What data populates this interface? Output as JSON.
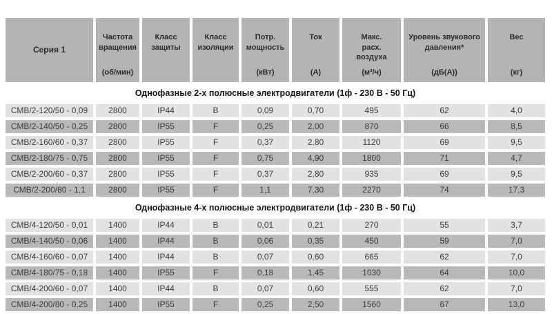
{
  "colors": {
    "header_bg": "#b4b4b4",
    "row_light_bg": "#e2e2e2",
    "row_dark_bg": "#b9b9b9",
    "text": "#3a3a3a"
  },
  "table": {
    "columns": [
      {
        "title": "Серия 1",
        "unit": ""
      },
      {
        "title": "Частота\nвращения",
        "unit": "(об/мин)"
      },
      {
        "title": "Класс\nзащиты",
        "unit": ""
      },
      {
        "title": "Класс\nизоляции",
        "unit": ""
      },
      {
        "title": "Потр.\nмощность",
        "unit": "(кВт)"
      },
      {
        "title": "Ток",
        "unit": "(А)"
      },
      {
        "title": "Макс.\nрасх.\nвоздуха",
        "unit": "(м³/ч)"
      },
      {
        "title": "Уровень звукового\nдавления*",
        "unit": "(дБ(А))"
      },
      {
        "title": "Вес",
        "unit": "(кг)"
      }
    ],
    "sections": [
      {
        "title": "Однофазные 2-х полюсные электродвигатели (1ф - 230 В - 50 Гц)",
        "rows": [
          [
            "СМВ/2-120/50 - 0,09",
            "2800",
            "IP44",
            "B",
            "0,09",
            "0,70",
            "495",
            "62",
            "4,0"
          ],
          [
            "СМВ/2-140/50 - 0,25",
            "2800",
            "IP55",
            "F",
            "0,25",
            "2,00",
            "870",
            "66",
            "8,5"
          ],
          [
            "СМВ/2-160/60 - 0,37",
            "2800",
            "IP55",
            "F",
            "0,37",
            "2,80",
            "1120",
            "69",
            "9,5"
          ],
          [
            "СМВ/2-180/75 - 0,75",
            "2800",
            "IP55",
            "F",
            "0,75",
            "4,90",
            "1800",
            "71",
            "4,7"
          ],
          [
            "СМВ/2-200/60 - 0,37",
            "2800",
            "IP55",
            "F",
            "0,37",
            "2,80",
            "935",
            "69",
            "9,5"
          ],
          [
            "СМВ/2-200/80 - 1,1",
            "2800",
            "IP55",
            "F",
            "1,1",
            "7,30",
            "2270",
            "74",
            "17,3"
          ]
        ]
      },
      {
        "title": "Однофазные 4-х полюсные электродвигатели (1ф - 230 В - 50 Гц)",
        "rows": [
          [
            "СМВ/4-120/50 - 0,01",
            "1400",
            "IP44",
            "B",
            "0,01",
            "0,21",
            "270",
            "55",
            "3,7"
          ],
          [
            "СМВ/4-140/50 - 0,06",
            "1400",
            "IP44",
            "B",
            "0,06",
            "0,35",
            "450",
            "59",
            "7,0"
          ],
          [
            "СМВ/4-160/60 - 0,07",
            "1400",
            "IP44",
            "B",
            "0,07",
            "0,60",
            "665",
            "62",
            "7,0"
          ],
          [
            "СМВ/4-180/75 - 0,18",
            "1400",
            "IP55",
            "F",
            "0,18",
            "1,45",
            "1030",
            "64",
            "10,0"
          ],
          [
            "СМВ/4-200/60 - 0,07",
            "1400",
            "IP44",
            "B",
            "0,07",
            "0,60",
            "555",
            "62",
            "7,0"
          ],
          [
            "СМВ/4-200/80 - 0,25",
            "1400",
            "IP55",
            "F",
            "0,25",
            "2,50",
            "1560",
            "67",
            "13,0"
          ]
        ]
      }
    ]
  }
}
